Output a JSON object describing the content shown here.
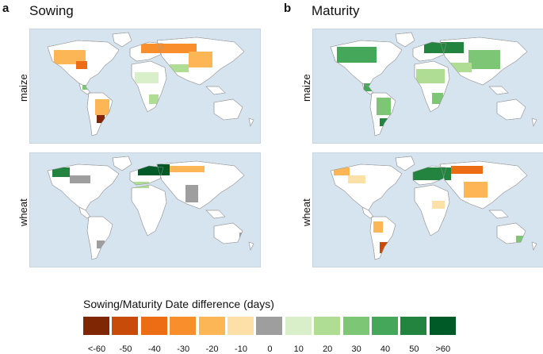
{
  "panels": [
    {
      "letter": "a",
      "title": "Sowing"
    },
    {
      "letter": "b",
      "title": "Maturity"
    }
  ],
  "rows": [
    "maize",
    "wheat"
  ],
  "legend": {
    "title": "Sowing/Maturity Date difference (days)",
    "items": [
      {
        "label": "<-60",
        "color": "#7f2704"
      },
      {
        "label": "-50",
        "color": "#c84b0a"
      },
      {
        "label": "-40",
        "color": "#ed6d14"
      },
      {
        "label": "-30",
        "color": "#f98f2c"
      },
      {
        "label": "-20",
        "color": "#fcb656"
      },
      {
        "label": "-10",
        "color": "#fde0a8"
      },
      {
        "label": "0",
        "color": "#9e9e9e"
      },
      {
        "label": "10",
        "color": "#d9efc9"
      },
      {
        "label": "20",
        "color": "#aedd93"
      },
      {
        "label": "30",
        "color": "#7cc675"
      },
      {
        "label": "40",
        "color": "#45a75a"
      },
      {
        "label": "50",
        "color": "#22843f"
      },
      {
        "label": ">60",
        "color": "#005a27"
      }
    ]
  },
  "colors": {
    "ocean": "#d6e4f0",
    "land": "#ffffff",
    "border": "#9a9a9a"
  }
}
